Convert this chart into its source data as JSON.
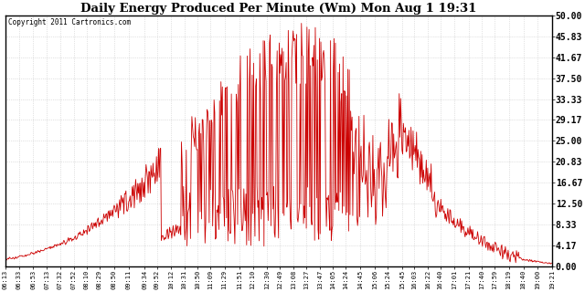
{
  "title": "Daily Energy Produced Per Minute (Wm) Mon Aug 1 19:31",
  "copyright": "Copyright 2011 Cartronics.com",
  "line_color": "#cc0000",
  "bg_color": "#ffffff",
  "plot_bg_color": "#ffffff",
  "grid_color": "#c8c8c8",
  "ylim": [
    0,
    50
  ],
  "yticks": [
    0.0,
    4.17,
    8.33,
    12.5,
    16.67,
    20.83,
    25.0,
    29.17,
    33.33,
    37.5,
    41.67,
    45.83,
    50.0
  ],
  "ytick_labels": [
    "0.00",
    "4.17",
    "8.33",
    "12.50",
    "16.67",
    "20.83",
    "25.00",
    "29.17",
    "33.33",
    "37.50",
    "41.67",
    "45.83",
    "50.00"
  ],
  "xtick_labels": [
    "06:13",
    "06:33",
    "06:53",
    "07:13",
    "07:32",
    "07:52",
    "08:10",
    "08:29",
    "08:50",
    "09:11",
    "09:34",
    "09:52",
    "10:12",
    "10:31",
    "10:50",
    "11:09",
    "11:29",
    "11:51",
    "12:10",
    "12:30",
    "12:49",
    "13:08",
    "13:27",
    "13:47",
    "14:05",
    "14:24",
    "14:45",
    "15:06",
    "15:24",
    "15:45",
    "16:03",
    "16:22",
    "16:40",
    "17:01",
    "17:21",
    "17:40",
    "17:59",
    "18:19",
    "18:40",
    "19:00",
    "19:21"
  ]
}
